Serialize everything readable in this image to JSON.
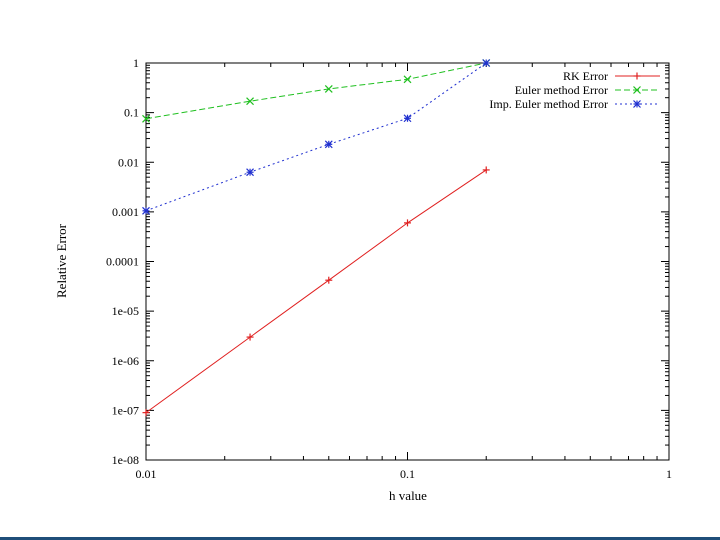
{
  "chart_data": {
    "type": "line",
    "xscale": "log",
    "yscale": "log",
    "xlim": [
      0.01,
      1
    ],
    "ylim": [
      1e-08,
      1
    ],
    "xticks": [
      {
        "v": 0.01,
        "label": "0.01"
      },
      {
        "v": 0.1,
        "label": "0.1"
      },
      {
        "v": 1,
        "label": "1"
      }
    ],
    "yticks": [
      {
        "v": 1e-08,
        "label": "1e-08"
      },
      {
        "v": 1e-07,
        "label": "1e-07"
      },
      {
        "v": 1e-06,
        "label": "1e-06"
      },
      {
        "v": 1e-05,
        "label": "1e-05"
      },
      {
        "v": 0.0001,
        "label": "0.0001"
      },
      {
        "v": 0.001,
        "label": "0.001"
      },
      {
        "v": 0.01,
        "label": "0.01"
      },
      {
        "v": 0.1,
        "label": "0.1"
      },
      {
        "v": 1,
        "label": "1"
      }
    ],
    "xlabel": "h value",
    "ylabel": "Relative Error",
    "grid": false,
    "legend_position": "top-right",
    "series": [
      {
        "name": "RK Error",
        "color": "#e02020",
        "marker": "plus",
        "dash": "solid",
        "x": [
          0.01,
          0.025,
          0.05,
          0.1,
          0.2
        ],
        "y": [
          9e-08,
          3e-06,
          4.2e-05,
          0.0006,
          0.007
        ]
      },
      {
        "name": "Euler method Error",
        "color": "#20c020",
        "marker": "cross",
        "dash": "dashed",
        "x": [
          0.01,
          0.025,
          0.05,
          0.1,
          0.2
        ],
        "y": [
          0.075,
          0.17,
          0.3,
          0.47,
          1.0
        ]
      },
      {
        "name": "Imp. Euler method Error",
        "color": "#2030d0",
        "marker": "star",
        "dash": "dotted",
        "x": [
          0.01,
          0.025,
          0.05,
          0.1,
          0.2
        ],
        "y": [
          0.00105,
          0.0063,
          0.023,
          0.077,
          1.0
        ]
      }
    ]
  }
}
